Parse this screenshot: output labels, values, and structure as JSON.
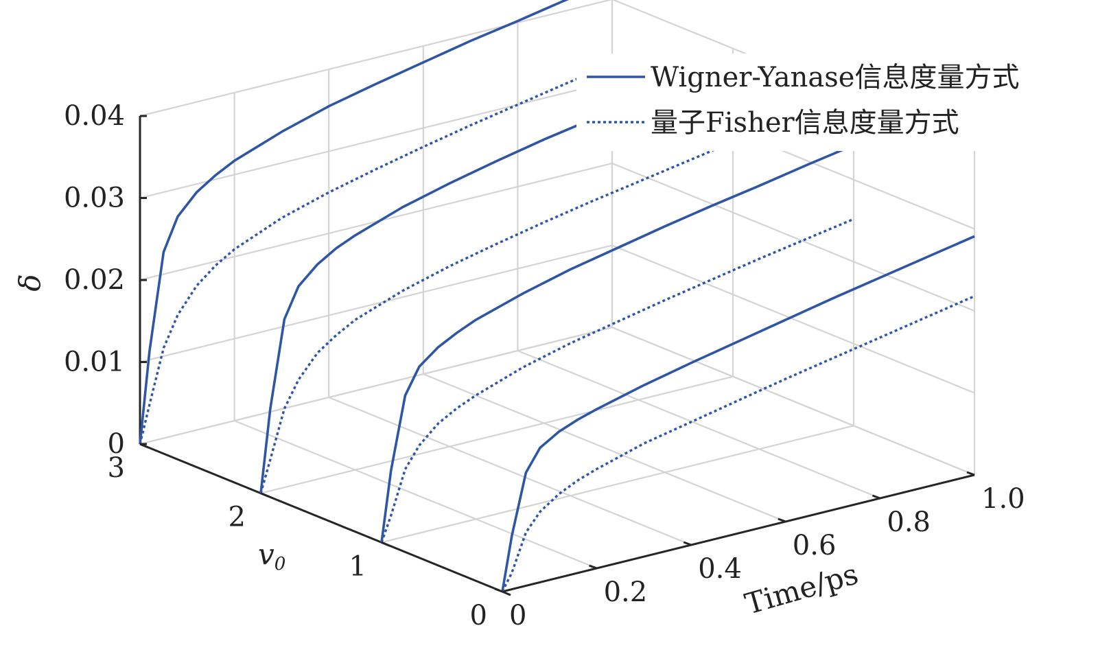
{
  "chart_data": {
    "type": "line",
    "view": "3d-waterfall",
    "x_label": "Time/ps",
    "y_label": "v",
    "y_label_sub": "0",
    "z_label": "δ",
    "x_ticks": [
      "0",
      "0.2",
      "0.4",
      "0.6",
      "0.8",
      "1.0"
    ],
    "y_ticks": [
      "0",
      "1",
      "2",
      "3"
    ],
    "z_ticks": [
      "0",
      "0.01",
      "0.02",
      "0.03",
      "0.04"
    ],
    "xlim": [
      0,
      1.0
    ],
    "ylim": [
      0,
      3
    ],
    "zlim": [
      0,
      0.04
    ],
    "grid": true,
    "legend_position": "top-right",
    "line_color": "#2f56a5",
    "t": [
      0,
      0.02,
      0.05,
      0.08,
      0.12,
      0.16,
      0.2,
      0.3,
      0.4,
      0.5,
      0.6,
      0.7,
      0.8,
      0.9,
      1.0
    ],
    "series": [
      {
        "name": "Wigner-Yanase信息度量方式",
        "style": "solid",
        "curves": [
          {
            "v0": 0,
            "values": [
              0,
              0.0065,
              0.0138,
              0.0164,
              0.0178,
              0.0187,
              0.0194,
              0.0209,
              0.0222,
              0.0234,
              0.0246,
              0.0258,
              0.0269,
              0.028,
              0.0291
            ]
          },
          {
            "v0": 1,
            "values": [
              0,
              0.0085,
              0.0172,
              0.0203,
              0.0221,
              0.0233,
              0.0243,
              0.0261,
              0.0276,
              0.0288,
              0.03,
              0.0311,
              0.0321,
              0.0332,
              0.0342
            ]
          },
          {
            "v0": 2,
            "values": [
              0,
              0.01,
              0.0205,
              0.0241,
              0.0262,
              0.0276,
              0.0286,
              0.0306,
              0.0321,
              0.0334,
              0.0346,
              0.0356,
              0.0367,
              0.0377,
              0.0387
            ]
          },
          {
            "v0": 3,
            "values": [
              0,
              0.011,
              0.0227,
              0.0266,
              0.029,
              0.0305,
              0.0317,
              0.0338,
              0.0355,
              0.0368,
              0.038,
              0.0392,
              0.0402,
              0.0413,
              0.0422
            ]
          }
        ]
      },
      {
        "name": "量子Fisher信息度量方式",
        "style": "dotted",
        "curves": [
          {
            "v0": 0,
            "values": [
              0,
              0.002,
              0.0065,
              0.0086,
              0.0102,
              0.0113,
              0.0121,
              0.0138,
              0.015,
              0.0162,
              0.0174,
              0.0185,
              0.0196,
              0.0207,
              0.0218
            ]
          },
          {
            "v0": 1,
            "values": [
              0,
              0.003,
              0.0082,
              0.0107,
              0.0128,
              0.0141,
              0.0151,
              0.0171,
              0.0186,
              0.0198,
              0.021,
              0.0221,
              0.0232,
              0.0242,
              0.0252
            ]
          },
          {
            "v0": 2,
            "values": [
              0,
              0.0038,
              0.0096,
              0.0127,
              0.0154,
              0.017,
              0.0183,
              0.0204,
              0.022,
              0.0233,
              0.0245,
              0.0256,
              0.0266,
              0.0276,
              0.0286
            ]
          },
          {
            "v0": 3,
            "values": [
              0,
              0.0045,
              0.011,
              0.0146,
              0.0176,
              0.0195,
              0.0209,
              0.0233,
              0.025,
              0.0264,
              0.0277,
              0.0289,
              0.03,
              0.0311,
              0.0321
            ]
          }
        ]
      }
    ]
  }
}
